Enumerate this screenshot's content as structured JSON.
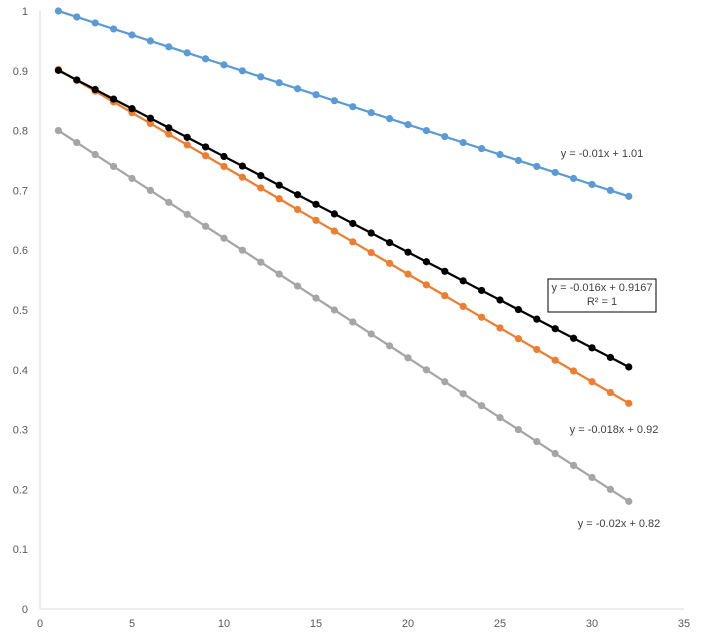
{
  "chart_data": {
    "type": "scatter",
    "xlim": [
      0,
      35
    ],
    "ylim": [
      0,
      1
    ],
    "x_ticks": [
      "0",
      "5",
      "10",
      "15",
      "20",
      "25",
      "30",
      "35"
    ],
    "y_ticks": [
      "0",
      "0.1",
      "0.2",
      "0.3",
      "0.4",
      "0.5",
      "0.6",
      "0.7",
      "0.8",
      "0.9",
      "1"
    ],
    "grid": false,
    "legend": "none",
    "x": [
      1,
      2,
      3,
      4,
      5,
      6,
      7,
      8,
      9,
      10,
      11,
      12,
      13,
      14,
      15,
      16,
      17,
      18,
      19,
      20,
      21,
      22,
      23,
      24,
      25,
      26,
      27,
      28,
      29,
      30,
      31,
      32
    ],
    "series": [
      {
        "color": "#5b9bd5",
        "values": [
          1.0,
          0.99,
          0.98,
          0.97,
          0.96,
          0.95,
          0.94,
          0.93,
          0.92,
          0.91,
          0.9,
          0.89,
          0.88,
          0.87,
          0.86,
          0.85,
          0.84,
          0.83,
          0.82,
          0.81,
          0.8,
          0.79,
          0.78,
          0.77,
          0.76,
          0.75,
          0.74,
          0.73,
          0.72,
          0.71,
          0.7,
          0.69
        ],
        "trendline_label": "y = -0.01x + 1.01"
      },
      {
        "color": "#ed7d31",
        "values": [
          0.902,
          0.884,
          0.866,
          0.848,
          0.83,
          0.812,
          0.794,
          0.776,
          0.758,
          0.74,
          0.722,
          0.704,
          0.686,
          0.668,
          0.65,
          0.632,
          0.614,
          0.596,
          0.578,
          0.56,
          0.542,
          0.524,
          0.506,
          0.488,
          0.47,
          0.452,
          0.434,
          0.416,
          0.398,
          0.38,
          0.362,
          0.344
        ],
        "trendline_label": "y = -0.018x + 0.92"
      },
      {
        "color": "#a5a5a5",
        "values": [
          0.8,
          0.78,
          0.76,
          0.74,
          0.72,
          0.7,
          0.68,
          0.66,
          0.64,
          0.62,
          0.6,
          0.58,
          0.56,
          0.54,
          0.52,
          0.5,
          0.48,
          0.46,
          0.44,
          0.42,
          0.4,
          0.38,
          0.36,
          0.34,
          0.32,
          0.3,
          0.28,
          0.26,
          0.24,
          0.22,
          0.2,
          0.18
        ],
        "trendline_label": "y = -0.02x + 0.82"
      },
      {
        "color": "#000000",
        "values": [
          0.9007,
          0.8847,
          0.8687,
          0.8527,
          0.8367,
          0.8207,
          0.8047,
          0.7887,
          0.7727,
          0.7567,
          0.7407,
          0.7247,
          0.7087,
          0.6927,
          0.6767,
          0.6607,
          0.6447,
          0.6287,
          0.6127,
          0.5967,
          0.5807,
          0.5647,
          0.5487,
          0.5327,
          0.5167,
          0.5007,
          0.4847,
          0.4687,
          0.4527,
          0.4367,
          0.4207,
          0.4047
        ],
        "trendline_label": "y = -0.016x + 0.9167",
        "r_squared_label": "R² = 1"
      }
    ]
  }
}
